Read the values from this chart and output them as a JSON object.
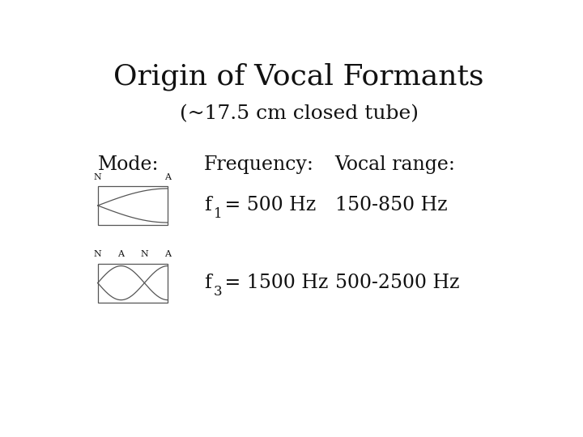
{
  "title": "Origin of Vocal Formants",
  "subtitle": "(~17.5 cm closed tube)",
  "col_headers": [
    "Mode:",
    "Frequency:",
    "Vocal range:"
  ],
  "row1_freq_main": "f",
  "row1_freq_sub": "1",
  "row1_freq_rest": " = 500 Hz",
  "row1_range": "150-850 Hz",
  "row2_freq_main": "f",
  "row2_freq_sub": "3",
  "row2_freq_rest": " = 1500 Hz",
  "row2_range": "500-2500 Hz",
  "row1_labels": [
    "N",
    "A"
  ],
  "row2_labels": [
    "N",
    "A",
    "N",
    "A"
  ],
  "bg_color": "#ffffff",
  "text_color": "#111111",
  "line_color": "#555555",
  "title_fontsize": 26,
  "subtitle_fontsize": 18,
  "header_fontsize": 17,
  "body_fontsize": 17,
  "sub_fontsize": 12,
  "label_fontsize": 8
}
